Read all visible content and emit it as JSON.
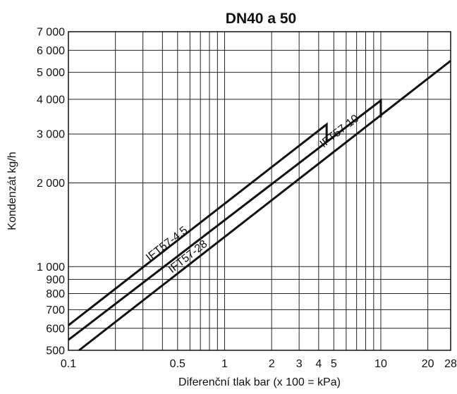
{
  "chart_data": {
    "type": "line",
    "title": "DN40 a 50",
    "xlabel": "Diferenční tlak bar (x 100 = kPa)",
    "ylabel": "Kondenzát  kg/h",
    "x_scale": "log",
    "y_scale": "log",
    "xlim": [
      0.1,
      28
    ],
    "ylim": [
      500,
      7000
    ],
    "grid": true,
    "x_ticks": [
      {
        "value": 0.1,
        "label": "0.1"
      },
      {
        "value": 0.5,
        "label": "0.5"
      },
      {
        "value": 1,
        "label": "1"
      },
      {
        "value": 2,
        "label": "2"
      },
      {
        "value": 3,
        "label": "3"
      },
      {
        "value": 4,
        "label": "4"
      },
      {
        "value": 5,
        "label": "5"
      },
      {
        "value": 10,
        "label": "10"
      },
      {
        "value": 20,
        "label": "20"
      },
      {
        "value": 28,
        "label": "28"
      }
    ],
    "x_grid": [
      0.2,
      0.3,
      0.4,
      0.5,
      0.6,
      0.7,
      0.8,
      0.9,
      1,
      2,
      3,
      4,
      5,
      6,
      7,
      8,
      9,
      10,
      20
    ],
    "y_ticks": [
      {
        "value": 500,
        "label": "500"
      },
      {
        "value": 600,
        "label": "600"
      },
      {
        "value": 700,
        "label": "700"
      },
      {
        "value": 800,
        "label": "800"
      },
      {
        "value": 900,
        "label": "900"
      },
      {
        "value": 1000,
        "label": "1 000"
      },
      {
        "value": 2000,
        "label": "2 000"
      },
      {
        "value": 3000,
        "label": "3 000"
      },
      {
        "value": 4000,
        "label": "4 000"
      },
      {
        "value": 5000,
        "label": "5 000"
      },
      {
        "value": 6000,
        "label": "6 000"
      },
      {
        "value": 7000,
        "label": "7 000"
      }
    ],
    "y_grid": [
      600,
      700,
      800,
      900,
      1000,
      2000,
      3000,
      4000,
      5000,
      6000,
      7000
    ],
    "series": [
      {
        "name": "IFT57-4.5",
        "points": [
          [
            0.1,
            615
          ],
          [
            4.5,
            3250
          ],
          [
            4.5,
            2820
          ]
        ]
      },
      {
        "name": "IFT57-10",
        "points": [
          [
            0.1,
            545
          ],
          [
            10,
            3960
          ],
          [
            10,
            3440
          ]
        ]
      },
      {
        "name": "IFT57-28",
        "points": [
          [
            0.117,
            500
          ],
          [
            28,
            5500
          ]
        ]
      }
    ]
  }
}
